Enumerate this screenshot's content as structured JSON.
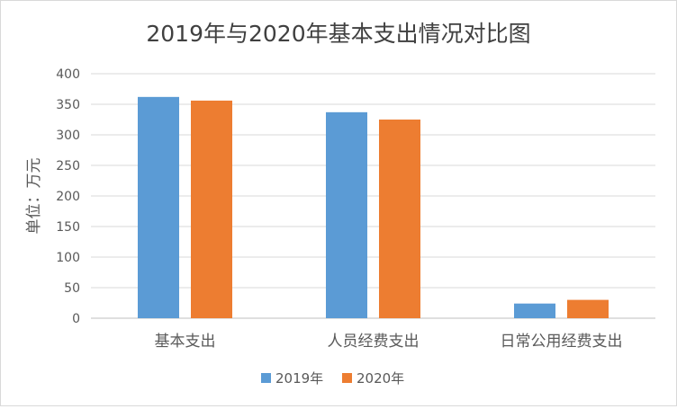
{
  "chart_data": {
    "type": "bar",
    "title": "2019年与2020年基本支出情况对比图",
    "xlabel": "",
    "ylabel": "单位：万元",
    "categories": [
      "基本支出",
      "人员经费支出",
      "日常公用经费支出"
    ],
    "series": [
      {
        "name": "2019年",
        "color": "#5b9bd5",
        "values": [
          362,
          337,
          24
        ]
      },
      {
        "name": "2020年",
        "color": "#ed7d31",
        "values": [
          356,
          325,
          30
        ]
      }
    ],
    "ylim": [
      0,
      400
    ],
    "yticks": [
      "0",
      "50",
      "100",
      "150",
      "200",
      "250",
      "300",
      "350",
      "400"
    ],
    "grid": true,
    "legend_position": "bottom"
  }
}
